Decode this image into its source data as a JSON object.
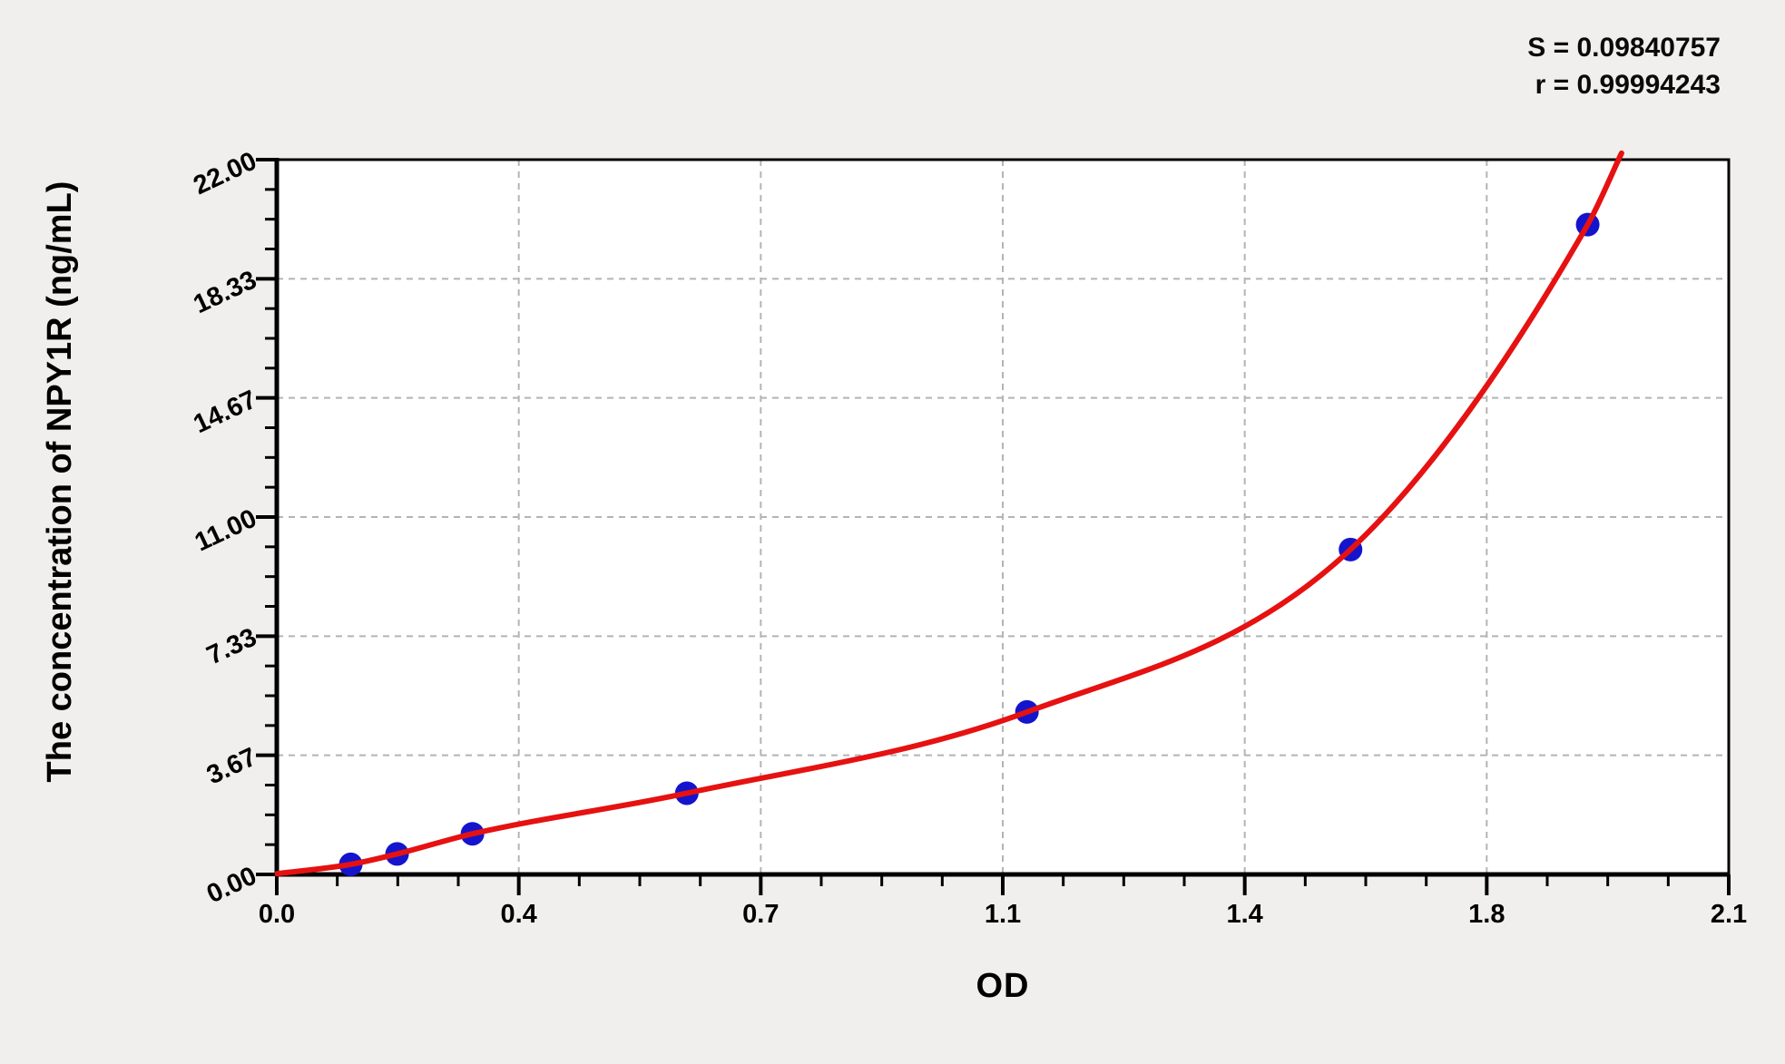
{
  "page": {
    "background": "#f0efed"
  },
  "stats": {
    "s_text": "S = 0.09840757",
    "r_text": "r = 0.99994243"
  },
  "chart_data": {
    "type": "scatter",
    "title": "",
    "xlabel": "OD",
    "ylabel": "The concentration of NPY1R (ng/mL)",
    "x_range": [
      0,
      2.1
    ],
    "y_range": [
      0,
      22
    ],
    "x_ticks": {
      "values": [
        0,
        0.35,
        0.7,
        1.05,
        1.4,
        1.75,
        2.1
      ],
      "labels": [
        "0.0",
        "0.4",
        "0.7",
        "1.1",
        "1.4",
        "1.8",
        "2.1"
      ],
      "minor_step": 0.0875
    },
    "y_ticks": {
      "values": [
        0,
        3.6666667,
        7.3333333,
        11,
        14.6666667,
        18.3333333,
        22
      ],
      "labels": [
        "0.00",
        "3.67",
        "7.33",
        "11.00",
        "14.67",
        "18.33",
        "22.00"
      ],
      "minor_step": 0.9166667
    },
    "grid": {
      "show": true,
      "style": "dashed",
      "color": "#b4b4b4"
    },
    "legend": "none",
    "series": [
      {
        "name": "standard-points",
        "type": "scatter",
        "color": "#1414cd",
        "marker_radius": 13,
        "points": [
          [
            0.107,
            0.31
          ],
          [
            0.174,
            0.63
          ],
          [
            0.283,
            1.25
          ],
          [
            0.593,
            2.5
          ],
          [
            1.085,
            5.0
          ],
          [
            1.553,
            10.0
          ],
          [
            1.896,
            20.0
          ]
        ]
      },
      {
        "name": "fitted-curve",
        "type": "line",
        "color": "#e61111",
        "width": 6,
        "points": [
          [
            0,
            0.02
          ],
          [
            0.107,
            0.31
          ],
          [
            0.174,
            0.63
          ],
          [
            0.283,
            1.25
          ],
          [
            0.593,
            2.5
          ],
          [
            1.085,
            5.0
          ],
          [
            1.553,
            10.0
          ],
          [
            1.896,
            20.0
          ],
          [
            1.945,
            22.2
          ]
        ]
      }
    ],
    "stats": {
      "S": "0.09840757",
      "r": "0.99994243"
    },
    "colors": {
      "plot_background": "#ffffff",
      "axis": "#000000",
      "grid": "#b4b4b4",
      "curve": "#e61111",
      "points": "#1414cd",
      "text": "#0a0a0a"
    }
  }
}
